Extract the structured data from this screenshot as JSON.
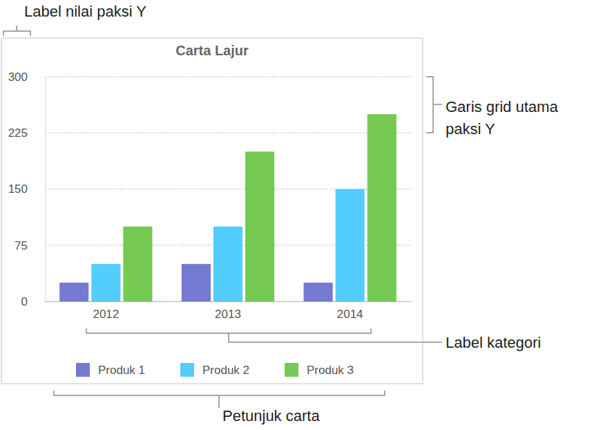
{
  "chart_data": {
    "type": "bar",
    "title": "Carta Lajur",
    "categories": [
      "2012",
      "2013",
      "2014"
    ],
    "series": [
      {
        "name": "Produk 1",
        "color": "#7479d1",
        "values": [
          25,
          50,
          25
        ]
      },
      {
        "name": "Produk 2",
        "color": "#52cdfc",
        "values": [
          50,
          100,
          150
        ]
      },
      {
        "name": "Produk 3",
        "color": "#76c952",
        "values": [
          100,
          200,
          250
        ]
      }
    ],
    "ylim": [
      0,
      300
    ],
    "yticks": [
      0,
      75,
      150,
      225,
      300
    ],
    "grid": true,
    "legend": "bottom",
    "annotations": [
      {
        "text": "Label nilai paksi Y"
      },
      {
        "text": "Garis grid utama\npaksi Y"
      },
      {
        "text": "Label kategori"
      },
      {
        "text": "Petunjuk carta"
      }
    ]
  }
}
